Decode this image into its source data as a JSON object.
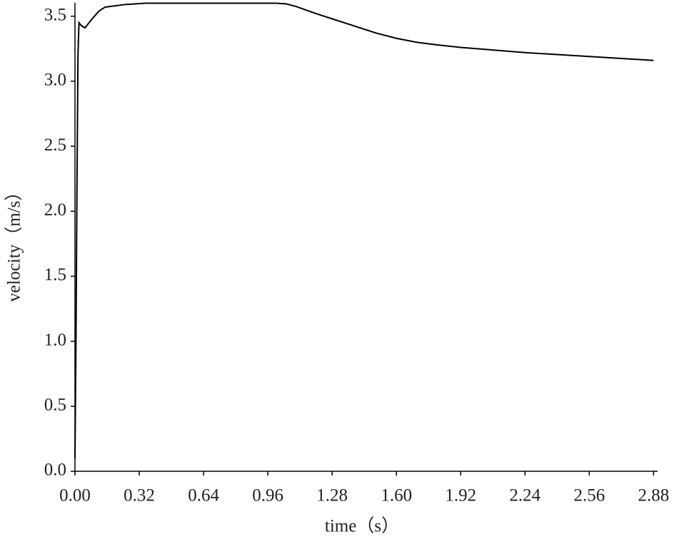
{
  "chart_data": {
    "type": "line",
    "x_label": "time（s）",
    "y_label": "velocity（m/s）",
    "x": [
      0.0,
      0.005,
      0.01,
      0.015,
      0.02,
      0.03,
      0.05,
      0.08,
      0.12,
      0.15,
      0.25,
      0.35,
      0.5,
      0.7,
      0.9,
      1.0,
      1.05,
      1.1,
      1.2,
      1.28,
      1.4,
      1.5,
      1.6,
      1.7,
      1.8,
      1.92,
      2.08,
      2.24,
      2.4,
      2.56,
      2.72,
      2.88
    ],
    "series": [
      {
        "name": "velocity",
        "color": "#000000",
        "values": [
          0.1,
          1.0,
          2.2,
          3.2,
          3.45,
          3.43,
          3.41,
          3.47,
          3.54,
          3.57,
          3.59,
          3.6,
          3.6,
          3.6,
          3.6,
          3.6,
          3.595,
          3.575,
          3.52,
          3.48,
          3.42,
          3.37,
          3.33,
          3.3,
          3.28,
          3.26,
          3.24,
          3.22,
          3.205,
          3.19,
          3.175,
          3.16
        ]
      }
    ],
    "xlim": [
      0,
      2.9
    ],
    "ylim": [
      0,
      3.6
    ],
    "xticks": [
      {
        "value": 0,
        "label": "0.00"
      },
      {
        "value": 0.32,
        "label": "0.32"
      },
      {
        "value": 0.64,
        "label": "0.64"
      },
      {
        "value": 0.96,
        "label": "0.96"
      },
      {
        "value": 1.28,
        "label": "1.28"
      },
      {
        "value": 1.6,
        "label": "1.60"
      },
      {
        "value": 1.92,
        "label": "1.92"
      },
      {
        "value": 2.24,
        "label": "2.24"
      },
      {
        "value": 2.56,
        "label": "2.56"
      },
      {
        "value": 2.88,
        "label": "2.88"
      }
    ],
    "yticks": [
      {
        "value": 0,
        "label": "0.0"
      },
      {
        "value": 0.5,
        "label": "0.5"
      },
      {
        "value": 1,
        "label": "1.0"
      },
      {
        "value": 1.5,
        "label": "1.5"
      },
      {
        "value": 2,
        "label": "2.0"
      },
      {
        "value": 2.5,
        "label": "2.5"
      },
      {
        "value": 3,
        "label": "3.0"
      },
      {
        "value": 3.5,
        "label": "3.5"
      }
    ],
    "grid": false
  }
}
